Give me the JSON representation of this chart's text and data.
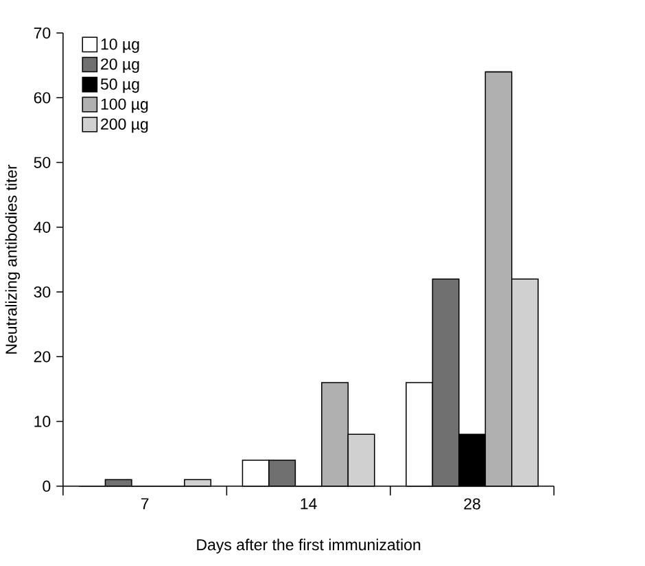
{
  "chart_data": {
    "type": "bar",
    "xlabel": "Days after the first immunization",
    "ylabel": "Neutralizing antibodies titer",
    "categories": [
      "7",
      "14",
      "28"
    ],
    "series": [
      {
        "name": "10 µg",
        "color": "#ffffff",
        "values": [
          0,
          4,
          16
        ]
      },
      {
        "name": "20 µg",
        "color": "#707070",
        "values": [
          1,
          4,
          32
        ]
      },
      {
        "name": "50 µg",
        "color": "#000000",
        "values": [
          0,
          0,
          8
        ]
      },
      {
        "name": "100 µg",
        "color": "#b0b0b0",
        "values": [
          0,
          16,
          64
        ]
      },
      {
        "name": "200 µg",
        "color": "#d0d0d0",
        "values": [
          1,
          8,
          32
        ]
      }
    ],
    "ylim": [
      0,
      70
    ],
    "yticks": [
      0,
      10,
      20,
      30,
      40,
      50,
      60,
      70
    ],
    "grid": false,
    "legend": "top left"
  }
}
